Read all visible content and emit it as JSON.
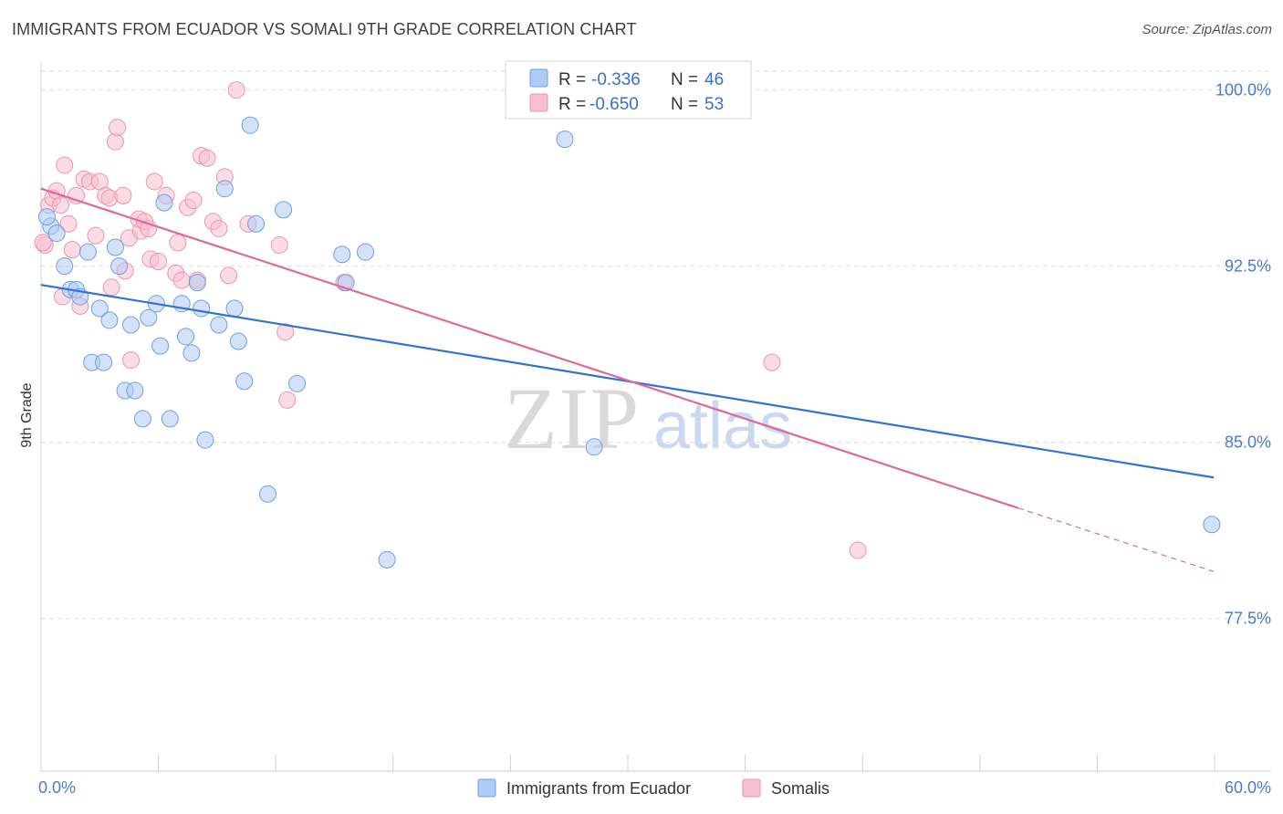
{
  "title": "IMMIGRANTS FROM ECUADOR VS SOMALI 9TH GRADE CORRELATION CHART",
  "source": "Source: ZipAtlas.com",
  "watermark": {
    "zip": "ZIP",
    "atlas": "atlas"
  },
  "legend": {
    "items": [
      {
        "r_label": "R = ",
        "r_value": "-0.336",
        "n_label": "N = ",
        "n_value": "46"
      },
      {
        "r_label": "R = ",
        "r_value": "-0.650",
        "n_label": "N = ",
        "n_value": "53"
      }
    ]
  },
  "colors": {
    "ecuador_fill": "#aecbf3",
    "ecuador_stroke": "#6f9fe0",
    "ecuador_line": "#2f74d0",
    "somali_fill": "#f8bfd0",
    "somali_stroke": "#ec93b0",
    "somali_line": "#e0679a",
    "grid": "#dedede",
    "axis_tick_text": "#4a7bd0"
  },
  "chart_data": {
    "type": "scatter",
    "title": "IMMIGRANTS FROM ECUADOR VS SOMALI 9TH GRADE CORRELATION CHART",
    "xlabel": "",
    "ylabel": "9th Grade",
    "xlim": [
      0,
      60
    ],
    "ylim": [
      71.0,
      100.8
    ],
    "x_tick_labels": [
      "0.0%",
      "60.0%"
    ],
    "y_ticks": [
      77.5,
      85.0,
      92.5,
      100.0
    ],
    "y_tick_labels": [
      "77.5%",
      "85.0%",
      "92.5%",
      "100.0%"
    ],
    "series": [
      {
        "name": "Immigrants from Ecuador",
        "r": -0.336,
        "n": 46,
        "trend": {
          "x0": 0,
          "y0": 91.7,
          "x1": 60,
          "y1": 83.5
        },
        "points": [
          [
            0.5,
            94.2
          ],
          [
            0.8,
            93.9
          ],
          [
            1.2,
            92.5
          ],
          [
            1.5,
            91.5
          ],
          [
            1.8,
            91.5
          ],
          [
            2.0,
            91.2
          ],
          [
            2.4,
            93.1
          ],
          [
            2.6,
            88.4
          ],
          [
            3.0,
            90.7
          ],
          [
            3.2,
            88.4
          ],
          [
            3.5,
            90.2
          ],
          [
            3.8,
            93.3
          ],
          [
            4.0,
            92.5
          ],
          [
            4.3,
            87.2
          ],
          [
            4.8,
            87.2
          ],
          [
            4.6,
            90.0
          ],
          [
            5.2,
            86.0
          ],
          [
            5.5,
            90.3
          ],
          [
            5.9,
            90.9
          ],
          [
            6.1,
            89.1
          ],
          [
            6.3,
            95.2
          ],
          [
            6.6,
            86.0
          ],
          [
            7.2,
            90.9
          ],
          [
            7.4,
            89.5
          ],
          [
            7.7,
            88.8
          ],
          [
            8.0,
            91.8
          ],
          [
            8.2,
            90.7
          ],
          [
            8.4,
            85.1
          ],
          [
            9.1,
            90.0
          ],
          [
            9.4,
            95.8
          ],
          [
            9.9,
            90.7
          ],
          [
            10.1,
            89.3
          ],
          [
            10.4,
            87.6
          ],
          [
            10.7,
            98.5
          ],
          [
            11.0,
            94.3
          ],
          [
            11.6,
            82.8
          ],
          [
            12.4,
            94.9
          ],
          [
            13.1,
            87.5
          ],
          [
            15.4,
            93.0
          ],
          [
            15.6,
            91.8
          ],
          [
            16.6,
            93.1
          ],
          [
            17.7,
            80.0
          ],
          [
            26.8,
            97.9
          ],
          [
            28.3,
            84.8
          ],
          [
            59.9,
            81.5
          ],
          [
            0.3,
            94.6
          ]
        ]
      },
      {
        "name": "Somalis",
        "r": -0.65,
        "n": 53,
        "trend": {
          "x0": 0,
          "y0": 95.8,
          "x1": 50,
          "y1": 82.2
        },
        "trend_dashed_to": {
          "x": 60,
          "y": 79.5
        },
        "points": [
          [
            0.2,
            93.4
          ],
          [
            0.4,
            95.1
          ],
          [
            0.6,
            95.4
          ],
          [
            0.8,
            95.7
          ],
          [
            1.0,
            95.1
          ],
          [
            1.2,
            96.8
          ],
          [
            1.4,
            94.3
          ],
          [
            1.6,
            93.2
          ],
          [
            1.8,
            95.5
          ],
          [
            2.0,
            90.8
          ],
          [
            2.2,
            96.2
          ],
          [
            2.5,
            96.1
          ],
          [
            2.8,
            93.8
          ],
          [
            3.0,
            96.1
          ],
          [
            3.3,
            95.5
          ],
          [
            3.5,
            95.4
          ],
          [
            3.6,
            91.6
          ],
          [
            3.8,
            97.8
          ],
          [
            3.9,
            98.4
          ],
          [
            4.2,
            95.5
          ],
          [
            4.3,
            92.3
          ],
          [
            4.5,
            93.7
          ],
          [
            4.6,
            88.5
          ],
          [
            5.0,
            94.5
          ],
          [
            5.1,
            94.0
          ],
          [
            5.3,
            94.4
          ],
          [
            5.5,
            94.1
          ],
          [
            5.6,
            92.8
          ],
          [
            5.8,
            96.1
          ],
          [
            6.0,
            92.7
          ],
          [
            6.4,
            95.5
          ],
          [
            6.9,
            92.2
          ],
          [
            7.0,
            93.5
          ],
          [
            7.2,
            91.9
          ],
          [
            7.5,
            95.0
          ],
          [
            7.8,
            95.3
          ],
          [
            8.0,
            91.9
          ],
          [
            8.2,
            97.2
          ],
          [
            8.5,
            97.1
          ],
          [
            8.8,
            94.4
          ],
          [
            9.1,
            94.1
          ],
          [
            9.4,
            96.3
          ],
          [
            9.6,
            92.1
          ],
          [
            10.0,
            100.0
          ],
          [
            10.6,
            94.3
          ],
          [
            12.2,
            93.4
          ],
          [
            12.5,
            89.7
          ],
          [
            12.6,
            86.8
          ],
          [
            15.5,
            91.8
          ],
          [
            37.4,
            88.4
          ],
          [
            41.8,
            80.4
          ],
          [
            0.1,
            93.5
          ],
          [
            1.1,
            91.2
          ]
        ]
      }
    ]
  },
  "bottom_legend": [
    "Immigrants from Ecuador",
    "Somalis"
  ]
}
